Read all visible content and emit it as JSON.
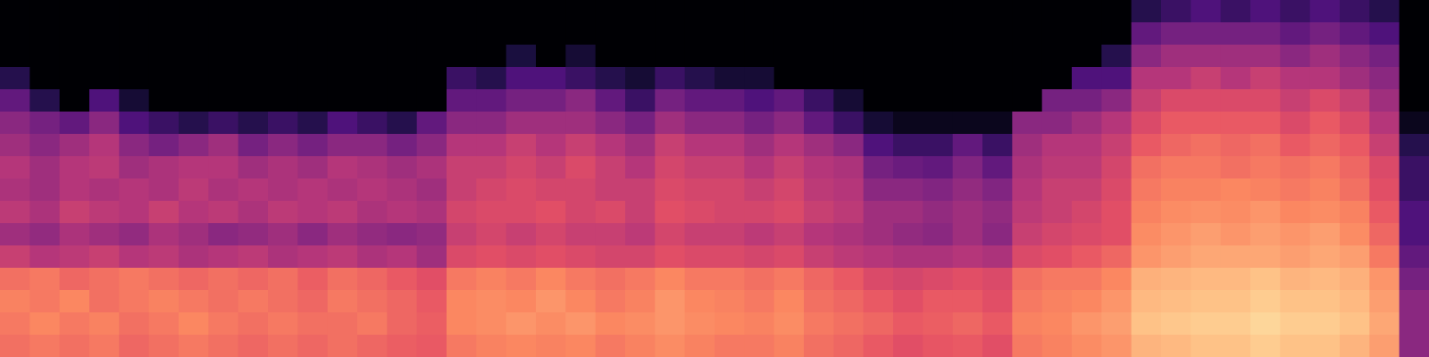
{
  "chart_data": {
    "type": "heatmap",
    "color": "magma",
    "zlim": [
      0,
      100
    ],
    "xlim": [
      0,
      48
    ],
    "ylim": [
      0,
      16
    ],
    "tick_labels": false,
    "grid": false,
    "cells": [
      [
        0,
        0,
        0,
        0,
        0,
        0,
        0,
        0,
        0,
        0,
        0,
        0,
        0,
        0,
        0,
        0,
        0,
        0,
        0,
        0,
        0,
        0,
        0,
        0,
        0,
        0,
        0,
        0,
        0,
        0,
        0,
        0,
        0,
        0,
        0,
        0,
        0,
        0,
        15,
        20,
        25,
        20,
        25,
        20,
        25,
        20,
        15,
        0
      ],
      [
        0,
        0,
        0,
        0,
        0,
        0,
        0,
        0,
        0,
        0,
        0,
        0,
        0,
        0,
        0,
        0,
        0,
        0,
        0,
        0,
        0,
        0,
        0,
        0,
        0,
        0,
        0,
        0,
        0,
        0,
        0,
        0,
        0,
        0,
        0,
        0,
        0,
        0,
        30,
        35,
        35,
        35,
        35,
        30,
        35,
        30,
        25,
        0
      ],
      [
        0,
        0,
        0,
        0,
        0,
        0,
        0,
        0,
        0,
        0,
        0,
        0,
        0,
        0,
        0,
        0,
        0,
        12,
        0,
        10,
        0,
        0,
        0,
        0,
        0,
        0,
        0,
        0,
        0,
        0,
        0,
        0,
        0,
        0,
        0,
        0,
        0,
        15,
        40,
        45,
        45,
        45,
        45,
        40,
        45,
        40,
        35,
        0
      ],
      [
        15,
        0,
        0,
        0,
        0,
        0,
        0,
        0,
        0,
        0,
        0,
        0,
        0,
        0,
        0,
        20,
        15,
        25,
        25,
        20,
        15,
        10,
        20,
        15,
        10,
        10,
        0,
        0,
        0,
        0,
        0,
        0,
        0,
        0,
        0,
        0,
        25,
        25,
        50,
        50,
        55,
        50,
        55,
        50,
        50,
        45,
        40,
        0
      ],
      [
        30,
        15,
        0,
        25,
        10,
        0,
        0,
        0,
        0,
        0,
        0,
        0,
        0,
        0,
        0,
        30,
        30,
        35,
        35,
        40,
        30,
        20,
        35,
        30,
        30,
        25,
        30,
        20,
        10,
        0,
        0,
        0,
        0,
        0,
        0,
        35,
        35,
        40,
        55,
        60,
        60,
        60,
        60,
        55,
        60,
        55,
        45,
        0
      ],
      [
        40,
        35,
        30,
        40,
        25,
        20,
        15,
        20,
        15,
        20,
        15,
        25,
        20,
        15,
        30,
        40,
        40,
        45,
        45,
        45,
        40,
        35,
        45,
        40,
        40,
        35,
        40,
        30,
        20,
        10,
        5,
        5,
        5,
        5,
        40,
        40,
        45,
        50,
        60,
        65,
        65,
        65,
        65,
        60,
        65,
        60,
        50,
        5
      ],
      [
        45,
        40,
        45,
        50,
        40,
        35,
        40,
        45,
        35,
        40,
        35,
        40,
        40,
        35,
        40,
        50,
        50,
        55,
        50,
        55,
        50,
        45,
        55,
        50,
        50,
        45,
        50,
        45,
        40,
        25,
        20,
        20,
        30,
        20,
        45,
        50,
        50,
        55,
        65,
        68,
        70,
        68,
        70,
        65,
        68,
        65,
        55,
        15
      ],
      [
        50,
        45,
        50,
        52,
        45,
        48,
        50,
        50,
        45,
        48,
        45,
        50,
        48,
        45,
        48,
        55,
        55,
        58,
        55,
        60,
        55,
        50,
        58,
        55,
        55,
        50,
        55,
        50,
        48,
        35,
        32,
        30,
        38,
        30,
        48,
        52,
        52,
        58,
        70,
        72,
        72,
        70,
        72,
        70,
        72,
        68,
        60,
        20
      ],
      [
        48,
        45,
        50,
        48,
        50,
        48,
        52,
        48,
        50,
        48,
        50,
        48,
        50,
        48,
        45,
        55,
        58,
        60,
        58,
        58,
        55,
        55,
        60,
        58,
        58,
        55,
        58,
        52,
        50,
        40,
        40,
        38,
        42,
        38,
        50,
        55,
        55,
        60,
        72,
        74,
        74,
        75,
        74,
        72,
        74,
        70,
        62,
        20
      ],
      [
        52,
        48,
        55,
        52,
        50,
        55,
        50,
        52,
        48,
        52,
        50,
        52,
        48,
        50,
        48,
        58,
        60,
        60,
        62,
        58,
        60,
        55,
        62,
        60,
        58,
        58,
        60,
        55,
        52,
        45,
        45,
        42,
        45,
        42,
        52,
        55,
        58,
        62,
        74,
        76,
        77,
        76,
        78,
        75,
        76,
        74,
        65,
        25
      ],
      [
        45,
        42,
        48,
        45,
        42,
        48,
        45,
        40,
        42,
        45,
        40,
        45,
        42,
        40,
        42,
        55,
        58,
        55,
        58,
        55,
        55,
        52,
        58,
        55,
        55,
        52,
        55,
        50,
        48,
        45,
        42,
        40,
        45,
        40,
        55,
        58,
        60,
        62,
        76,
        78,
        80,
        78,
        80,
        78,
        80,
        76,
        68,
        25
      ],
      [
        55,
        50,
        52,
        55,
        50,
        52,
        48,
        50,
        52,
        48,
        50,
        52,
        48,
        50,
        45,
        60,
        62,
        60,
        62,
        60,
        58,
        58,
        62,
        60,
        60,
        58,
        60,
        55,
        52,
        50,
        48,
        48,
        50,
        48,
        60,
        62,
        65,
        68,
        78,
        80,
        82,
        82,
        82,
        80,
        82,
        80,
        72,
        30
      ],
      [
        70,
        72,
        68,
        70,
        72,
        70,
        68,
        70,
        68,
        70,
        66,
        70,
        68,
        65,
        62,
        72,
        74,
        72,
        75,
        72,
        70,
        72,
        75,
        72,
        72,
        70,
        72,
        68,
        65,
        60,
        58,
        60,
        62,
        60,
        70,
        72,
        72,
        75,
        84,
        85,
        86,
        86,
        88,
        85,
        86,
        84,
        78,
        35
      ],
      [
        74,
        72,
        75,
        70,
        72,
        74,
        72,
        70,
        72,
        70,
        68,
        72,
        70,
        68,
        65,
        75,
        76,
        75,
        78,
        75,
        72,
        74,
        78,
        75,
        74,
        72,
        75,
        70,
        68,
        65,
        62,
        65,
        65,
        62,
        72,
        74,
        75,
        78,
        86,
        87,
        88,
        88,
        90,
        88,
        88,
        86,
        80,
        40
      ],
      [
        72,
        75,
        72,
        74,
        70,
        72,
        75,
        72,
        70,
        72,
        70,
        70,
        72,
        68,
        66,
        75,
        76,
        78,
        76,
        78,
        75,
        76,
        78,
        76,
        75,
        74,
        76,
        72,
        70,
        68,
        65,
        66,
        68,
        65,
        74,
        75,
        78,
        80,
        88,
        89,
        90,
        90,
        92,
        90,
        90,
        88,
        82,
        40
      ],
      [
        70,
        72,
        70,
        72,
        68,
        70,
        72,
        70,
        68,
        70,
        68,
        70,
        68,
        66,
        65,
        72,
        74,
        75,
        74,
        75,
        72,
        74,
        76,
        74,
        72,
        72,
        74,
        70,
        68,
        65,
        62,
        64,
        65,
        62,
        72,
        74,
        76,
        78,
        85,
        86,
        88,
        88,
        90,
        88,
        88,
        85,
        80,
        40
      ]
    ]
  }
}
